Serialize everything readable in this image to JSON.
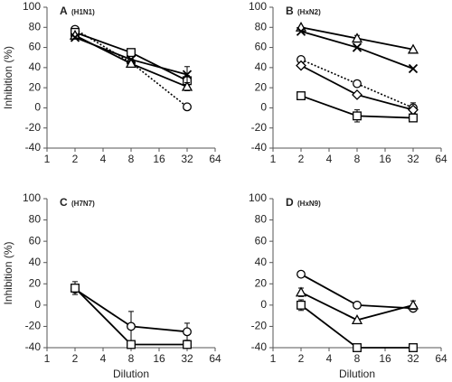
{
  "chart_data": [
    {
      "type": "line",
      "panel": "A",
      "title": "(H1N1)",
      "ylabel": "Inhibition (%)",
      "x": [
        2,
        8,
        32
      ],
      "xlim": [
        1,
        64
      ],
      "xticks": [
        1,
        2,
        4,
        8,
        16,
        32,
        64
      ],
      "xscale": "log2",
      "ylim": [
        -40,
        100
      ],
      "yticks": [
        -40,
        -20,
        0,
        20,
        40,
        60,
        80,
        100
      ],
      "color": "#000000",
      "series": [
        {
          "marker": "circle",
          "dash": "dotted",
          "values": [
            78,
            45,
            1
          ],
          "errors": [
            null,
            null,
            null
          ]
        },
        {
          "marker": "square",
          "dash": "solid",
          "values": [
            75,
            55,
            27
          ],
          "errors": [
            null,
            null,
            5
          ]
        },
        {
          "marker": "triangle",
          "dash": "solid",
          "values": [
            72,
            44,
            21
          ],
          "errors": [
            null,
            null,
            4
          ]
        },
        {
          "marker": "x",
          "dash": "solid",
          "values": [
            70,
            48,
            33
          ],
          "errors": [
            null,
            null,
            8
          ]
        }
      ]
    },
    {
      "type": "line",
      "panel": "B",
      "title": "(HxN2)",
      "x": [
        2,
        8,
        32
      ],
      "xlim": [
        1,
        64
      ],
      "xticks": [
        1,
        2,
        4,
        8,
        16,
        32,
        64
      ],
      "xscale": "log2",
      "ylim": [
        -40,
        100
      ],
      "yticks": [
        -40,
        -20,
        0,
        20,
        40,
        60,
        80,
        100
      ],
      "color": "#000000",
      "series": [
        {
          "marker": "triangle",
          "dash": "solid",
          "values": [
            80,
            69,
            58
          ],
          "errors": [
            null,
            3,
            null
          ]
        },
        {
          "marker": "x",
          "dash": "solid",
          "values": [
            76,
            60,
            39
          ],
          "errors": [
            null,
            null,
            null
          ]
        },
        {
          "marker": "circle",
          "dash": "dotted",
          "values": [
            48,
            24,
            0
          ],
          "errors": [
            null,
            null,
            5
          ]
        },
        {
          "marker": "diamond",
          "dash": "solid",
          "values": [
            42,
            13,
            -2
          ],
          "errors": [
            null,
            null,
            null
          ]
        },
        {
          "marker": "square",
          "dash": "solid",
          "values": [
            12,
            -8,
            -10
          ],
          "errors": [
            null,
            6,
            null
          ]
        }
      ]
    },
    {
      "type": "line",
      "panel": "C",
      "title": "(H7N7)",
      "ylabel": "Inhibition (%)",
      "xlabel": "Dilution",
      "x": [
        2,
        8,
        32
      ],
      "xlim": [
        1,
        64
      ],
      "xticks": [
        1,
        2,
        4,
        8,
        16,
        32,
        64
      ],
      "xscale": "log2",
      "ylim": [
        -40,
        100
      ],
      "yticks": [
        -40,
        -20,
        0,
        20,
        40,
        60,
        80,
        100
      ],
      "color": "#000000",
      "series": [
        {
          "marker": "circle",
          "dash": "solid",
          "values": [
            15,
            -20,
            -25
          ],
          "errors": [
            null,
            14,
            8
          ]
        },
        {
          "marker": "square",
          "dash": "solid",
          "values": [
            16,
            -37,
            -37
          ],
          "errors": [
            6,
            null,
            null
          ]
        }
      ]
    },
    {
      "type": "line",
      "panel": "D",
      "title": "(HxN9)",
      "xlabel": "Dilution",
      "x": [
        2,
        8,
        32
      ],
      "xlim": [
        1,
        64
      ],
      "xticks": [
        1,
        2,
        4,
        8,
        16,
        32,
        64
      ],
      "xscale": "log2",
      "ylim": [
        -40,
        100
      ],
      "yticks": [
        -40,
        -20,
        0,
        20,
        40,
        60,
        80,
        100
      ],
      "color": "#000000",
      "series": [
        {
          "marker": "circle",
          "dash": "solid",
          "values": [
            29,
            0,
            -3
          ],
          "errors": [
            null,
            null,
            null
          ]
        },
        {
          "marker": "triangle",
          "dash": "solid",
          "values": [
            12,
            -14,
            0
          ],
          "errors": [
            4,
            null,
            4
          ]
        },
        {
          "marker": "square",
          "dash": "solid",
          "values": [
            0,
            -40,
            -40
          ],
          "errors": [
            5,
            3,
            3
          ]
        }
      ]
    }
  ]
}
